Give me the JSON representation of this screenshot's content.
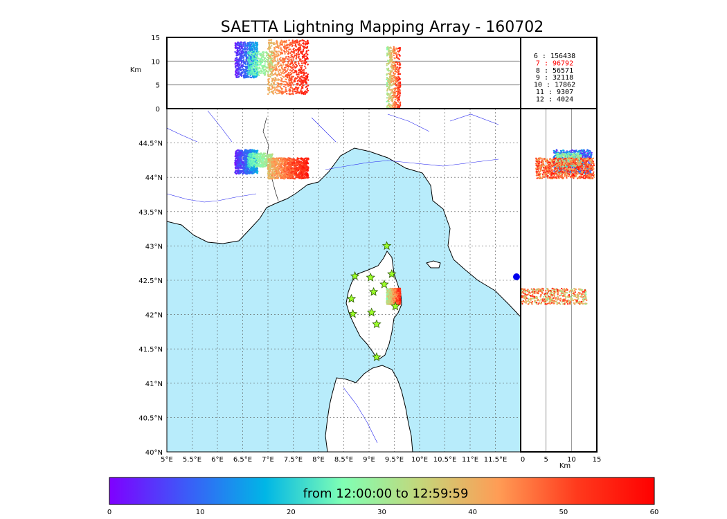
{
  "chart_data": {
    "type": "scatter",
    "title": "SAETTA Lightning Mapping Array - 160702",
    "colorbar": {
      "label": "from 12:00:00 to 12:59:59",
      "range": [
        0,
        60
      ],
      "ticks": [
        "0",
        "10",
        "20",
        "30",
        "40",
        "50",
        "60"
      ],
      "colors": [
        "#7f00ff",
        "#3b5cf8",
        "#00b6e6",
        "#80ffb4",
        "#c4d67a",
        "#ff9c55",
        "#ff3a1d",
        "#ff0000"
      ]
    },
    "map": {
      "lon_range": [
        5,
        12
      ],
      "lat_range": [
        40,
        45
      ],
      "lon_ticks": [
        "5°E",
        "5.5°E",
        "6°E",
        "6.5°E",
        "7°E",
        "7.5°E",
        "8°E",
        "8.5°E",
        "9°E",
        "9.5°E",
        "10°E",
        "10.5°E",
        "11°E",
        "11.5°E"
      ],
      "lat_ticks": [
        "40°N",
        "40.5°N",
        "41°N",
        "41.5°N",
        "42°N",
        "42.5°N",
        "43°N",
        "43.5°N",
        "44°N",
        "44.5°N"
      ],
      "sea_color": "#b8ecfb",
      "river_color": "#2222ee"
    },
    "altitude": {
      "label": "Km",
      "range": [
        0,
        15
      ],
      "ticks": [
        "0",
        "5",
        "10",
        "15"
      ]
    },
    "stations": [
      {
        "lon": 9.35,
        "lat": 43.0
      },
      {
        "lon": 8.72,
        "lat": 42.56
      },
      {
        "lon": 9.03,
        "lat": 42.54
      },
      {
        "lon": 9.45,
        "lat": 42.59
      },
      {
        "lon": 9.3,
        "lat": 42.44
      },
      {
        "lon": 9.09,
        "lat": 42.33
      },
      {
        "lon": 8.65,
        "lat": 42.23
      },
      {
        "lon": 9.52,
        "lat": 42.12
      },
      {
        "lon": 8.68,
        "lat": 42.01
      },
      {
        "lon": 9.05,
        "lat": 42.03
      },
      {
        "lon": 9.15,
        "lat": 41.86
      },
      {
        "lon": 9.15,
        "lat": 41.38
      }
    ],
    "clusters": [
      {
        "lon": [
          6.35,
          6.8
        ],
        "lat": [
          44.05,
          44.4
        ],
        "alt": [
          6.5,
          14
        ],
        "time": [
          0,
          20
        ],
        "n": 700
      },
      {
        "lon": [
          6.6,
          7.1
        ],
        "lat": [
          44.15,
          44.35
        ],
        "alt": [
          7,
          12
        ],
        "time": [
          20,
          35
        ],
        "n": 300
      },
      {
        "lon": [
          7.0,
          7.8
        ],
        "lat": [
          43.98,
          44.28
        ],
        "alt": [
          3,
          14.5
        ],
        "time": [
          35,
          60
        ],
        "n": 900
      },
      {
        "lon": [
          9.35,
          9.62
        ],
        "lat": [
          42.15,
          42.38
        ],
        "alt": [
          0,
          13
        ],
        "time": [
          25,
          60
        ],
        "n": 500
      }
    ],
    "counts": [
      {
        "label": "6  :   156438",
        "color": "#000000"
      },
      {
        "label": "7  :    96792",
        "color": "#ff0000"
      },
      {
        "label": "8  :    56571",
        "color": "#000000"
      },
      {
        "label": "9  :    32118",
        "color": "#000000"
      },
      {
        "label": "10  :    17862",
        "color": "#000000"
      },
      {
        "label": "11  :     9307",
        "color": "#000000"
      },
      {
        "label": "12  :     4024",
        "color": "#000000"
      }
    ]
  }
}
